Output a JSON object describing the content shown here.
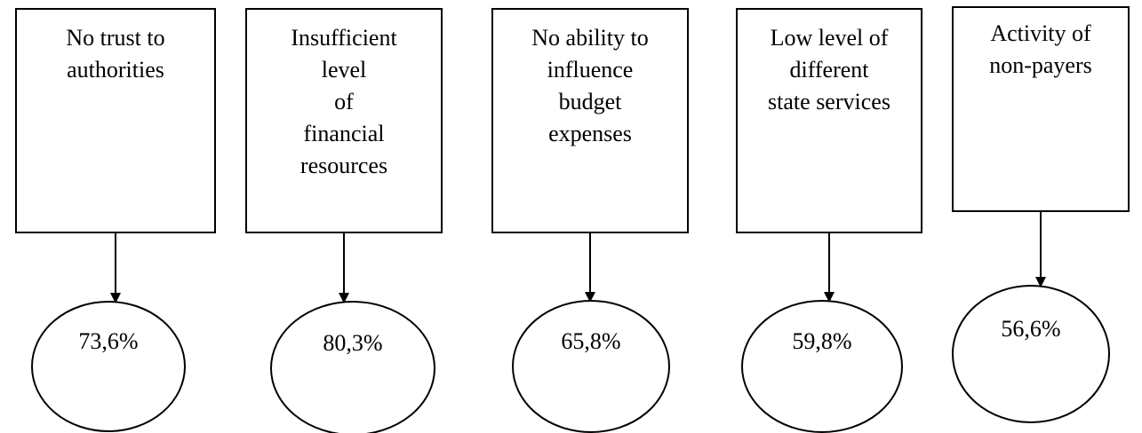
{
  "nodes": [
    {
      "label": [
        "No trust to",
        "authorities"
      ],
      "value": "73,6%"
    },
    {
      "label": [
        "Insufficient",
        "level",
        "of",
        "financial",
        "resources"
      ],
      "value": "80,3%"
    },
    {
      "label": [
        "No ability to",
        "influence",
        "budget",
        "expenses"
      ],
      "value": "65,8%"
    },
    {
      "label": [
        "Low level of",
        "different",
        "state services"
      ],
      "value": "59,8%"
    },
    {
      "label": [
        "Activity of",
        "non-payers"
      ],
      "value": "56,6%"
    }
  ]
}
